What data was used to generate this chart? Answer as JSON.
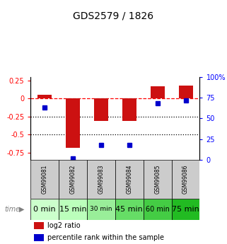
{
  "title": "GDS2579 / 1826",
  "samples": [
    "GSM99081",
    "GSM99082",
    "GSM99083",
    "GSM99084",
    "GSM99085",
    "GSM99086"
  ],
  "time_labels": [
    "0 min",
    "15 min",
    "30 min",
    "45 min",
    "60 min",
    "75 min"
  ],
  "log2_ratio": [
    0.05,
    -0.68,
    -0.31,
    -0.31,
    0.17,
    0.18
  ],
  "percentile_rank": [
    63,
    2,
    18,
    18,
    68,
    72
  ],
  "bar_color": "#cc1111",
  "dot_color": "#0000cc",
  "ylim_left": [
    -0.85,
    0.3
  ],
  "ylim_right": [
    0,
    100
  ],
  "yticks_left": [
    0.25,
    0.0,
    -0.25,
    -0.5,
    -0.75
  ],
  "yticks_right": [
    100,
    75,
    50,
    25,
    0
  ],
  "dotted_lines": [
    -0.25,
    -0.5
  ],
  "bar_width": 0.5,
  "bg_color": "#ffffff",
  "gsm_bg": "#cccccc",
  "time_colors": [
    "#ccffcc",
    "#bbffbb",
    "#99ee99",
    "#66dd66",
    "#44cc44",
    "#22bb22"
  ],
  "legend_log2_label": "log2 ratio",
  "legend_pct_label": "percentile rank within the sample"
}
